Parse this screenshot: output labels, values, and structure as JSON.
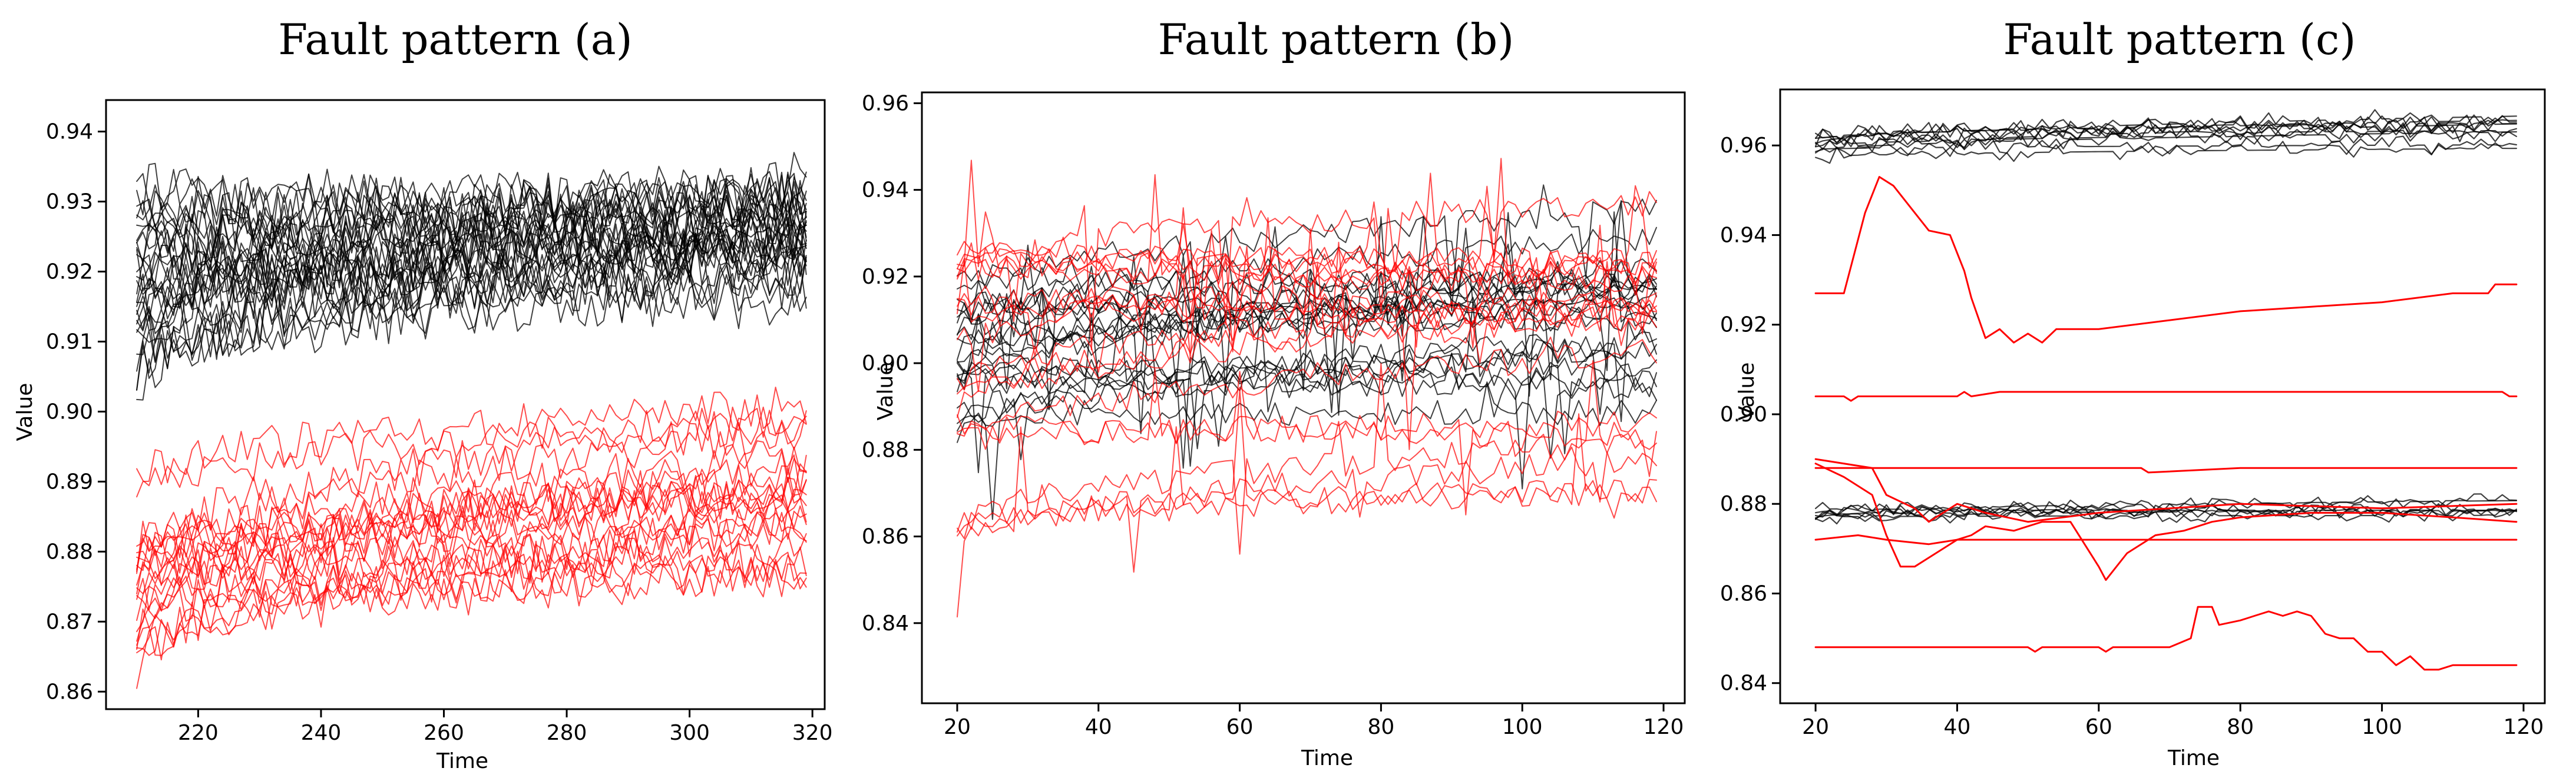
{
  "colors": {
    "normal": "#000000",
    "fault": "#ff0000"
  },
  "chart_data": [
    {
      "type": "line",
      "title": "Fault pattern (a)",
      "xlabel": "Time",
      "ylabel": "Value",
      "xlim": [
        205,
        322
      ],
      "ylim": [
        0.8575,
        0.9445
      ],
      "xticks": [
        220,
        240,
        260,
        280,
        300,
        320
      ],
      "yticks": [
        0.86,
        0.87,
        0.88,
        0.89,
        0.9,
        0.91,
        0.92,
        0.93,
        0.94
      ],
      "x_range": [
        210,
        319
      ],
      "groups": [
        {
          "color": "normal",
          "count": 30,
          "start_range": [
            0.903,
            0.932
          ],
          "end_range": [
            0.916,
            0.938
          ],
          "noise": 0.0042
        },
        {
          "color": "fault",
          "count": 22,
          "start_range": [
            0.862,
            0.892
          ],
          "end_range": [
            0.874,
            0.903
          ],
          "noise": 0.003
        }
      ]
    },
    {
      "type": "line",
      "title": "Fault pattern (b)",
      "xlabel": "Time",
      "ylabel": "Value",
      "xlim": [
        15,
        123
      ],
      "ylim": [
        0.8215,
        0.9625
      ],
      "xticks": [
        20,
        40,
        60,
        80,
        100,
        120
      ],
      "yticks": [
        0.84,
        0.86,
        0.88,
        0.9,
        0.92,
        0.94,
        0.96
      ],
      "x_range": [
        20,
        119
      ],
      "groups": [
        {
          "color": "normal",
          "count": 22,
          "start_range": [
            0.882,
            0.922
          ],
          "end_range": [
            0.888,
            0.942
          ],
          "noise": 0.003
        },
        {
          "color": "fault",
          "count": 20,
          "start_range": [
            0.856,
            0.931
          ],
          "end_range": [
            0.868,
            0.942
          ],
          "noise": 0.0032
        }
      ]
    },
    {
      "type": "line",
      "title": "Fault pattern (c)",
      "xlabel": "Time",
      "ylabel": "Value",
      "xlim": [
        15,
        123
      ],
      "ylim": [
        0.8355,
        0.9725
      ],
      "xticks": [
        20,
        40,
        60,
        80,
        100,
        120
      ],
      "yticks": [
        0.84,
        0.86,
        0.88,
        0.9,
        0.92,
        0.94,
        0.96
      ],
      "x_range": [
        20,
        119
      ],
      "groups": [
        {
          "color": "normal",
          "count": 10,
          "start_range": [
            0.956,
            0.963
          ],
          "end_range": [
            0.958,
            0.967
          ],
          "noise": 0.0014
        },
        {
          "color": "normal",
          "count": 7,
          "start_range": [
            0.876,
            0.879
          ],
          "end_range": [
            0.877,
            0.881
          ],
          "noise": 0.001
        }
      ],
      "fault_series": [
        {
          "x": [
            20,
            24,
            27,
            29,
            31,
            34,
            36,
            39,
            41,
            42,
            44,
            46,
            48,
            50,
            52,
            54,
            60,
            70,
            80,
            90,
            100,
            110,
            115,
            116,
            119
          ],
          "y": [
            0.927,
            0.927,
            0.945,
            0.953,
            0.951,
            0.945,
            0.941,
            0.94,
            0.932,
            0.926,
            0.917,
            0.919,
            0.916,
            0.918,
            0.916,
            0.919,
            0.919,
            0.921,
            0.923,
            0.924,
            0.925,
            0.927,
            0.927,
            0.929,
            0.929
          ]
        },
        {
          "x": [
            20,
            24,
            25,
            26,
            40,
            41,
            42,
            46,
            60,
            80,
            100,
            117,
            118,
            119
          ],
          "y": [
            0.904,
            0.904,
            0.903,
            0.904,
            0.904,
            0.905,
            0.904,
            0.905,
            0.905,
            0.905,
            0.905,
            0.905,
            0.904,
            0.904
          ],
          "width": 3
        },
        {
          "x": [
            20,
            60,
            66,
            67,
            80,
            100,
            119
          ],
          "y": [
            0.888,
            0.888,
            0.888,
            0.887,
            0.888,
            0.888,
            0.888
          ],
          "width": 3
        },
        {
          "x": [
            20,
            24,
            28,
            30,
            32,
            34,
            37,
            40,
            42,
            44,
            48,
            52,
            56,
            60,
            61,
            64,
            68,
            72,
            76,
            80,
            90,
            100,
            110,
            119
          ],
          "y": [
            0.889,
            0.886,
            0.882,
            0.873,
            0.866,
            0.866,
            0.869,
            0.872,
            0.873,
            0.875,
            0.874,
            0.876,
            0.876,
            0.866,
            0.863,
            0.869,
            0.873,
            0.874,
            0.876,
            0.877,
            0.878,
            0.878,
            0.877,
            0.876
          ]
        },
        {
          "x": [
            20,
            28,
            30,
            34,
            36,
            40,
            44,
            50,
            60,
            80,
            100,
            119
          ],
          "y": [
            0.89,
            0.888,
            0.882,
            0.879,
            0.876,
            0.88,
            0.878,
            0.876,
            0.878,
            0.88,
            0.879,
            0.88
          ]
        },
        {
          "x": [
            20,
            26,
            30,
            36,
            40,
            50,
            60,
            80,
            100,
            119
          ],
          "y": [
            0.872,
            0.873,
            0.872,
            0.871,
            0.872,
            0.872,
            0.872,
            0.872,
            0.872,
            0.872
          ]
        },
        {
          "x": [
            20,
            30,
            50,
            51,
            52,
            60,
            61,
            62,
            70,
            73,
            74,
            76,
            77,
            80,
            82,
            84,
            86,
            88,
            90,
            92,
            94,
            96,
            98,
            100,
            102,
            104,
            106,
            108,
            110,
            119
          ],
          "y": [
            0.848,
            0.848,
            0.848,
            0.847,
            0.848,
            0.848,
            0.847,
            0.848,
            0.848,
            0.85,
            0.857,
            0.857,
            0.853,
            0.854,
            0.855,
            0.856,
            0.855,
            0.856,
            0.855,
            0.851,
            0.85,
            0.85,
            0.847,
            0.847,
            0.844,
            0.846,
            0.843,
            0.843,
            0.844,
            0.844
          ]
        }
      ]
    }
  ]
}
